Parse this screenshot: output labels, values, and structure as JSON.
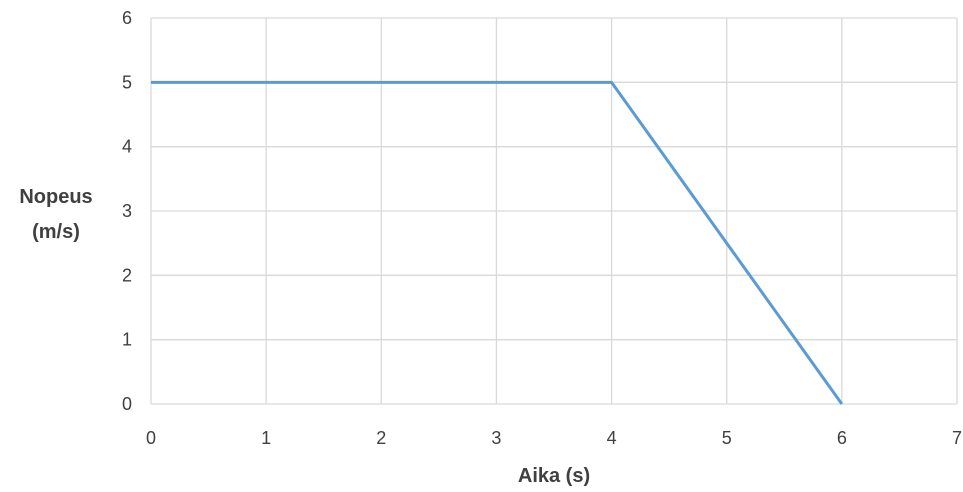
{
  "chart_data": {
    "type": "line",
    "title": "",
    "xlabel": "Aika (s)",
    "ylabel_lines": [
      "Nopeus",
      "(m/s)"
    ],
    "xlim": [
      0,
      7
    ],
    "ylim": [
      0,
      6
    ],
    "x_ticks": [
      "0",
      "1",
      "2",
      "3",
      "4",
      "5",
      "6",
      "7"
    ],
    "y_ticks": [
      "0",
      "1",
      "2",
      "3",
      "4",
      "5",
      "6"
    ],
    "grid": true,
    "legend": "none",
    "series": [
      {
        "color": "#5b9bd5",
        "x": [
          0,
          4,
          6
        ],
        "y": [
          5,
          5,
          0
        ]
      }
    ]
  }
}
